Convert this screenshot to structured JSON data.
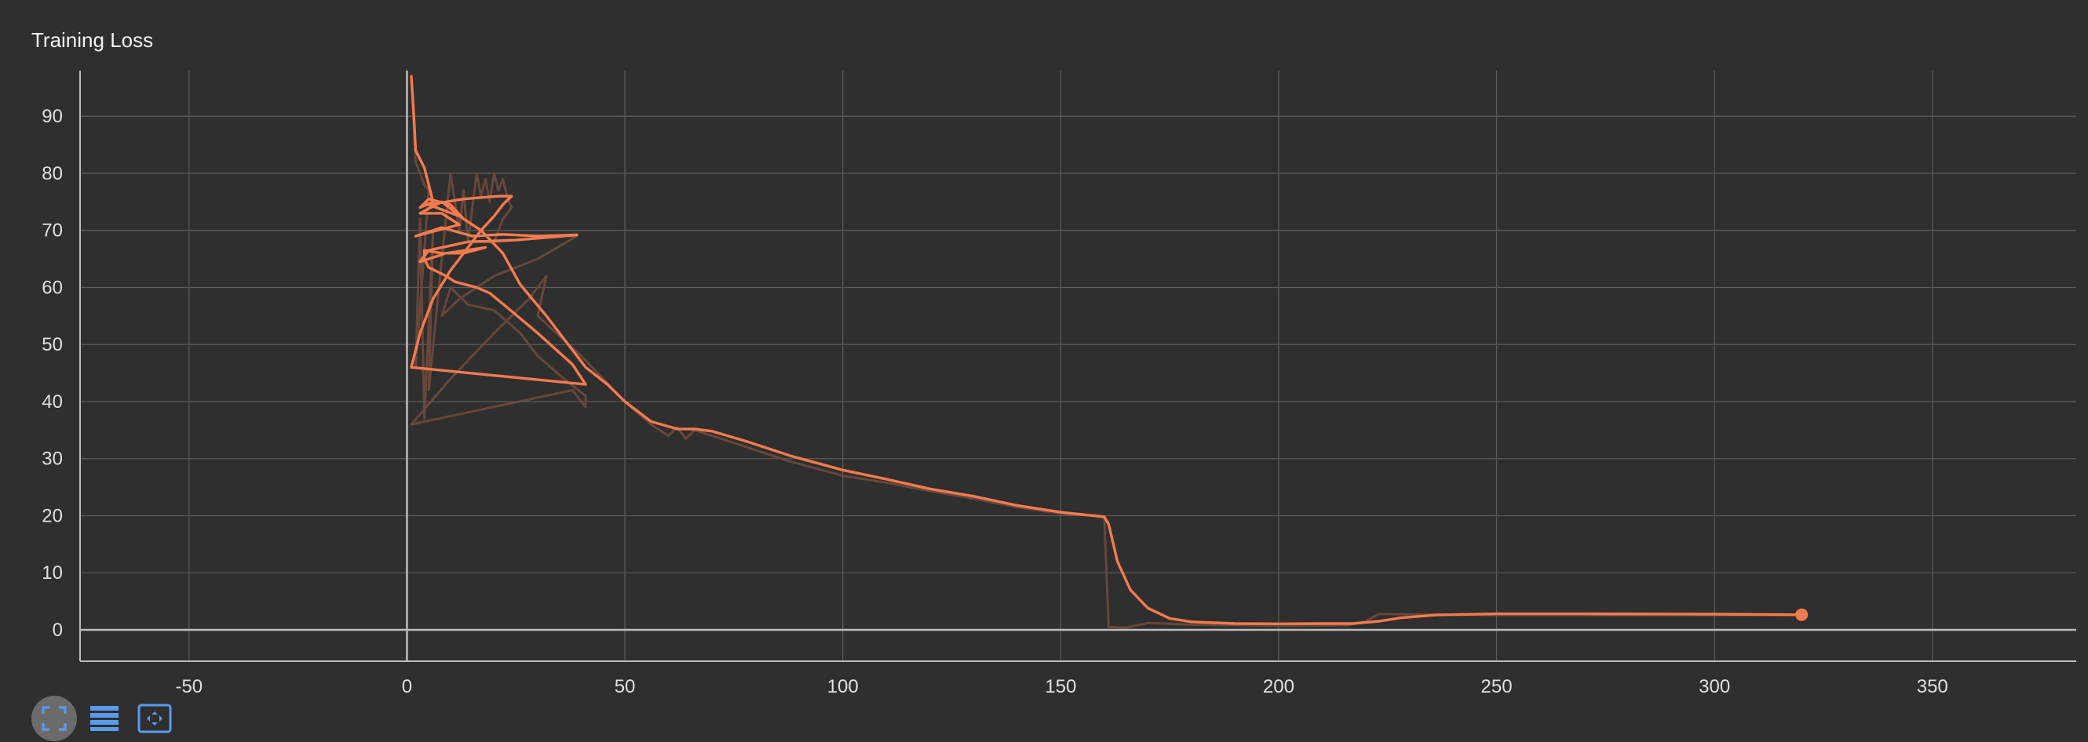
{
  "title": "Training Loss",
  "toolbar": {
    "items": [
      {
        "name": "fullscreen-icon",
        "active": true
      },
      {
        "name": "data-table-icon",
        "active": false
      },
      {
        "name": "fit-domain-icon",
        "active": false
      }
    ]
  },
  "colors": {
    "background": "#2f2f2f",
    "series": "#f47b4f",
    "series_raw": "#6e4a3c",
    "grid": "#5a5a5a",
    "axis": "#bdbdbd"
  },
  "chart_data": {
    "type": "line",
    "title": "Training Loss",
    "xlabel": "",
    "ylabel": "",
    "xlim": [
      -75,
      383
    ],
    "ylim": [
      -5.5,
      98
    ],
    "x_ticks": [
      -50,
      0,
      50,
      100,
      150,
      200,
      250,
      300,
      350
    ],
    "y_ticks": [
      0,
      10,
      20,
      30,
      40,
      50,
      60,
      70,
      80,
      90
    ],
    "grid": true,
    "legend": "none",
    "series": [
      {
        "kind": "smoothed",
        "points": [
          [
            1,
            97
          ],
          [
            1.5,
            91
          ],
          [
            2,
            84
          ],
          [
            4,
            81
          ],
          [
            6,
            75
          ],
          [
            3,
            74
          ],
          [
            5,
            75.5
          ],
          [
            10,
            74.5
          ],
          [
            13,
            72
          ],
          [
            8,
            75
          ],
          [
            3,
            73
          ],
          [
            8,
            73
          ],
          [
            12,
            71
          ],
          [
            2,
            69
          ],
          [
            8,
            70.5
          ],
          [
            15,
            69
          ],
          [
            22,
            69.3
          ],
          [
            30,
            69
          ],
          [
            39,
            69.2
          ],
          [
            25,
            68.3
          ],
          [
            14,
            68
          ],
          [
            5,
            66.5
          ],
          [
            3,
            64.5
          ],
          [
            9,
            66
          ],
          [
            18,
            67
          ],
          [
            13,
            66
          ],
          [
            8,
            66
          ],
          [
            4,
            66.5
          ],
          [
            4,
            65
          ],
          [
            5,
            63.5
          ],
          [
            9,
            62
          ],
          [
            11,
            61
          ],
          [
            16,
            60
          ],
          [
            19,
            59
          ],
          [
            23,
            56.5
          ],
          [
            30,
            52
          ],
          [
            38,
            46.5
          ],
          [
            41,
            43
          ],
          [
            1,
            46
          ],
          [
            3,
            52
          ],
          [
            6,
            58
          ],
          [
            10,
            63
          ],
          [
            14,
            67
          ],
          [
            17,
            70
          ],
          [
            20,
            72.5
          ],
          [
            22,
            74.5
          ],
          [
            24,
            76
          ],
          [
            21,
            76
          ],
          [
            13,
            75.5
          ],
          [
            5,
            74.5
          ],
          [
            12,
            72.5
          ],
          [
            17,
            70
          ],
          [
            22,
            66
          ],
          [
            26,
            60.5
          ],
          [
            32,
            55
          ],
          [
            36,
            51
          ],
          [
            41,
            46
          ],
          [
            46,
            43
          ],
          [
            50,
            40
          ],
          [
            56,
            36.5
          ],
          [
            62,
            35.2
          ],
          [
            66,
            35.2
          ],
          [
            70,
            34.8
          ],
          [
            78,
            33
          ],
          [
            88,
            30.5
          ],
          [
            100,
            28
          ],
          [
            110,
            26.4
          ],
          [
            120,
            24.7
          ],
          [
            130,
            23.4
          ],
          [
            140,
            21.8
          ],
          [
            150,
            20.6
          ],
          [
            160,
            19.8
          ],
          [
            161,
            18.5
          ],
          [
            163,
            12
          ],
          [
            166,
            7
          ],
          [
            170,
            3.8
          ],
          [
            175,
            2
          ],
          [
            180,
            1.4
          ],
          [
            190,
            1.1
          ],
          [
            200,
            1.05
          ],
          [
            210,
            1.1
          ],
          [
            217,
            1.1
          ],
          [
            223,
            1.5
          ],
          [
            228,
            2.1
          ],
          [
            236,
            2.6
          ],
          [
            250,
            2.8
          ],
          [
            270,
            2.8
          ],
          [
            300,
            2.75
          ],
          [
            320,
            2.65
          ]
        ]
      },
      {
        "kind": "raw",
        "points": [
          [
            1,
            97
          ],
          [
            2,
            82
          ],
          [
            3,
            80
          ],
          [
            4,
            78
          ],
          [
            5,
            77
          ],
          [
            2,
            46
          ],
          [
            3,
            72
          ],
          [
            4,
            37
          ],
          [
            6,
            70
          ],
          [
            5,
            42
          ],
          [
            8,
            65
          ],
          [
            10,
            80
          ],
          [
            12,
            70
          ],
          [
            13,
            77
          ],
          [
            14,
            68
          ],
          [
            16,
            80
          ],
          [
            17,
            76
          ],
          [
            18,
            79
          ],
          [
            19,
            75
          ],
          [
            20,
            80
          ],
          [
            21,
            77
          ],
          [
            22,
            79
          ],
          [
            23,
            76
          ],
          [
            24,
            74
          ],
          [
            22,
            72
          ],
          [
            20,
            68
          ],
          [
            35,
            69
          ],
          [
            39,
            69
          ],
          [
            30,
            65
          ],
          [
            20,
            62
          ],
          [
            12,
            58
          ],
          [
            8,
            55
          ],
          [
            10,
            60
          ],
          [
            14,
            57
          ],
          [
            20,
            56
          ],
          [
            26,
            52
          ],
          [
            30,
            48
          ],
          [
            36,
            44
          ],
          [
            41,
            41
          ],
          [
            41,
            39
          ],
          [
            38,
            42
          ],
          [
            1,
            36
          ],
          [
            10,
            44
          ],
          [
            20,
            52
          ],
          [
            28,
            58
          ],
          [
            32,
            62
          ],
          [
            30,
            55
          ],
          [
            40,
            48
          ],
          [
            45,
            44
          ],
          [
            50,
            40
          ],
          [
            56,
            36
          ],
          [
            60,
            34
          ],
          [
            62,
            35.5
          ],
          [
            64,
            33.5
          ],
          [
            66,
            35
          ],
          [
            70,
            34
          ],
          [
            78,
            32
          ],
          [
            88,
            29.5
          ],
          [
            100,
            27
          ],
          [
            110,
            25.8
          ],
          [
            120,
            24.3
          ],
          [
            130,
            23
          ],
          [
            140,
            21.5
          ],
          [
            150,
            20.4
          ],
          [
            159,
            20
          ],
          [
            160,
            19.5
          ],
          [
            161,
            0.5
          ],
          [
            165,
            0.4
          ],
          [
            170,
            1.2
          ],
          [
            180,
            0.9
          ],
          [
            200,
            0.7
          ],
          [
            216,
            0.8
          ],
          [
            220,
            1.5
          ],
          [
            223,
            2.8
          ],
          [
            230,
            2.7
          ],
          [
            250,
            2.6
          ],
          [
            270,
            2.6
          ],
          [
            300,
            2.6
          ],
          [
            320,
            2.6
          ]
        ]
      }
    ],
    "end_marker": [
      320,
      2.65
    ]
  }
}
